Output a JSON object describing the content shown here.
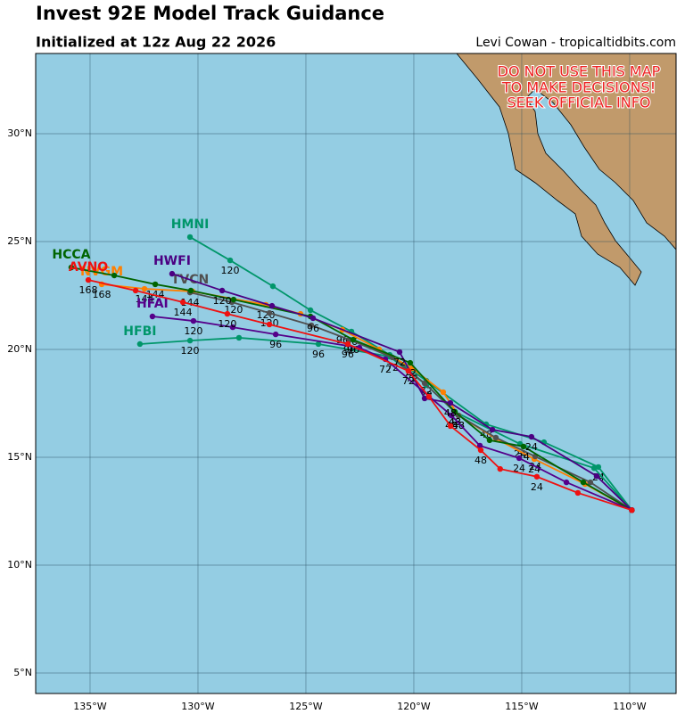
{
  "chart_data": {
    "type": "map",
    "title": "Invest 92E Model Track Guidance",
    "subtitle": "Initialized at 12z Aug 22 2026",
    "credit": "Levi Cowan - tropicaltidbits.com",
    "warning": [
      "DO NOT USE THIS MAP",
      "TO MAKE DECISIONS!",
      "SEEK OFFICIAL INFO"
    ],
    "xlim": [
      -137.52,
      -107.85
    ],
    "ylim": [
      4.05,
      33.72
    ],
    "xticks": [
      {
        "value": -135,
        "label": "135°W"
      },
      {
        "value": -130,
        "label": "130°W"
      },
      {
        "value": -125,
        "label": "125°W"
      },
      {
        "value": -120,
        "label": "120°W"
      },
      {
        "value": -115,
        "label": "115°W"
      },
      {
        "value": -110,
        "label": "110°W"
      }
    ],
    "yticks": [
      {
        "value": 5,
        "label": "5°N"
      },
      {
        "value": 10,
        "label": "10°N"
      },
      {
        "value": 15,
        "label": "15°N"
      },
      {
        "value": 20,
        "label": "20°N"
      },
      {
        "value": 25,
        "label": "25°N"
      },
      {
        "value": 30,
        "label": "30°N"
      }
    ],
    "grid": true,
    "water_color": "#94cde3",
    "land_color": "#c19a6b",
    "series": [
      {
        "name": "HMNI",
        "color": "#00966a",
        "x": [
          -109.9,
          -111.45,
          -113.97,
          -116.65,
          -119.42,
          -121.12,
          -122.89,
          -124.79,
          -126.53,
          -128.51,
          -130.37
        ],
        "y": [
          12.55,
          14.55,
          15.7,
          16.53,
          18.55,
          19.75,
          20.83,
          21.82,
          22.93,
          24.13,
          25.21
        ],
        "point_labels": [
          null,
          24,
          null,
          48,
          72,
          null,
          96,
          null,
          null,
          120,
          null
        ]
      },
      {
        "name": "HFBI",
        "color": "#00966a",
        "x": [
          -109.9,
          -111.65,
          -115.08,
          -118.1,
          -119.42,
          -121.12,
          -124.42,
          -128.1,
          -130.37,
          -132.69
        ],
        "y": [
          12.55,
          14.5,
          15.62,
          17.11,
          18.35,
          19.67,
          20.25,
          20.54,
          20.41,
          20.25
        ],
        "point_labels": [
          null,
          null,
          24,
          48,
          72,
          null,
          96,
          null,
          120,
          null
        ]
      },
      {
        "name": "NVGM",
        "color": "#ff7f00",
        "x": [
          -109.9,
          -112.07,
          -114.42,
          -116.2,
          -117.93,
          -118.64,
          -120.08,
          -121.61,
          -123.31,
          -125.25,
          -126.86,
          -130.25,
          -132.48,
          -134.46
        ],
        "y": [
          12.55,
          13.76,
          14.92,
          15.87,
          16.94,
          18.02,
          19.13,
          20.0,
          20.91,
          21.65,
          22.07,
          22.69,
          22.81,
          23.02
        ],
        "point_labels": [
          null,
          null,
          24,
          null,
          48,
          null,
          72,
          null,
          96,
          null,
          120,
          null,
          144,
          168
        ]
      },
      {
        "name": "TVCN",
        "color": "#505050",
        "x": [
          -109.9,
          -111.82,
          -114.38,
          -116.2,
          -117.93,
          -119.5,
          -120.99,
          -122.98,
          -124.75,
          -126.69,
          -128.43,
          -130.37
        ],
        "y": [
          12.55,
          13.84,
          15.04,
          15.91,
          16.94,
          18.43,
          19.63,
          20.45,
          21.12,
          21.69,
          22.19,
          22.64
        ],
        "point_labels": [
          null,
          null,
          24,
          null,
          48,
          null,
          72,
          96,
          null,
          120,
          null,
          144
        ]
      },
      {
        "name": "HCCA",
        "color": "#006400",
        "x": [
          -109.9,
          -112.15,
          -114.92,
          -116.49,
          -118.1,
          -120.17,
          -122.81,
          -124.79,
          -128.35,
          -130.33,
          -131.98,
          -133.88,
          -135.87
        ],
        "y": [
          12.55,
          13.84,
          15.5,
          15.79,
          17.11,
          19.38,
          20.45,
          21.53,
          22.31,
          22.73,
          23.02,
          23.43,
          23.8
        ],
        "point_labels": [
          null,
          null,
          24,
          null,
          48,
          72,
          96,
          null,
          120,
          null,
          144,
          null,
          null
        ]
      },
      {
        "name": "HFAI",
        "color": "#55008a",
        "x": [
          -109.9,
          -112.93,
          -115.12,
          -116.94,
          -118.26,
          -121.32,
          -122.52,
          -126.4,
          -128.39,
          -130.21,
          -132.11
        ],
        "y": [
          12.55,
          13.84,
          14.96,
          15.54,
          16.94,
          19.55,
          20.08,
          20.7,
          21.03,
          21.32,
          21.53
        ],
        "point_labels": [
          null,
          null,
          24,
          null,
          48,
          72,
          null,
          96,
          null,
          120,
          null
        ]
      },
      {
        "name": "HWFI",
        "color": "#4b0082",
        "x": [
          -109.9,
          -111.53,
          -114.55,
          -116.36,
          -118.31,
          -119.5,
          -120.66,
          -124.67,
          -126.57,
          -128.88,
          -131.2
        ],
        "y": [
          12.55,
          14.13,
          15.95,
          16.28,
          17.52,
          17.73,
          19.88,
          21.45,
          22.02,
          22.73,
          23.51
        ],
        "point_labels": [
          null,
          null,
          24,
          null,
          48,
          null,
          72,
          96,
          null,
          120,
          null
        ]
      },
      {
        "name": "AVNO",
        "color": "#ee1111",
        "x": [
          -109.9,
          -112.4,
          -114.3,
          -116.0,
          -116.9,
          -118.3,
          -119.3,
          -120.25,
          -123.06,
          -126.69,
          -128.64,
          -130.7,
          -132.89,
          -135.08
        ],
        "y": [
          12.55,
          13.35,
          14.1,
          14.46,
          15.33,
          16.45,
          17.81,
          19.0,
          20.25,
          21.16,
          21.65,
          22.19,
          22.73,
          23.22
        ],
        "point_labels": [
          null,
          null,
          24,
          null,
          48,
          null,
          null,
          72,
          96,
          null,
          120,
          144,
          null,
          168
        ]
      }
    ]
  }
}
